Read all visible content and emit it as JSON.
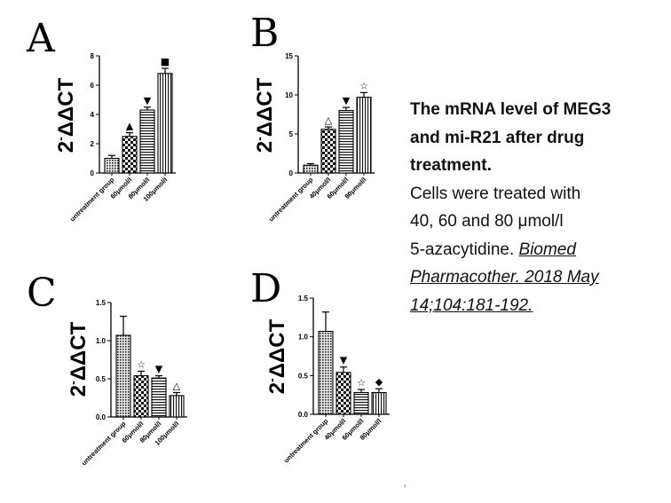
{
  "caption": {
    "title_lines": [
      "The mRNA level of MEG3",
      "and mi-R21 after drug",
      "treatment."
    ],
    "body_lines": [
      "Cells were treated with",
      "40, 60 and 80 μmol/l",
      "5-azacytidine. "
    ],
    "reference_lines": [
      "Biomed ",
      "Pharmacother. 2018 May ",
      "14;104:181-192."
    ]
  },
  "stray_mark": "‹",
  "chart_data": [
    {
      "panel": "A",
      "type": "bar",
      "ylabel": "2-ΔΔCT",
      "ylim": [
        0,
        8
      ],
      "yticks": [
        "0",
        "2",
        "4",
        "6",
        "8"
      ],
      "categories": [
        "untreatment group",
        "60μmol/l",
        "80μmol/l",
        "100μmol/l"
      ],
      "values": [
        1.0,
        2.5,
        4.3,
        6.8
      ],
      "errors": [
        0.2,
        0.25,
        0.2,
        0.35
      ],
      "markers": [
        "",
        "▲",
        "▼",
        "■"
      ],
      "patterns": [
        "dots",
        "checker",
        "hlines",
        "vlines"
      ]
    },
    {
      "panel": "B",
      "type": "bar",
      "ylabel": "2-ΔΔCT",
      "ylim": [
        0,
        15
      ],
      "yticks": [
        "0",
        "5",
        "10",
        "15"
      ],
      "categories": [
        "untreatment group",
        "40μmol/l",
        "60μmol/l",
        "80μmol/l"
      ],
      "values": [
        1.0,
        5.6,
        8.0,
        9.7
      ],
      "errors": [
        0.2,
        0.3,
        0.4,
        0.6
      ],
      "markers": [
        "",
        "△",
        "▼",
        "☆"
      ],
      "patterns": [
        "dots",
        "checker",
        "hlines",
        "vlines"
      ]
    },
    {
      "panel": "C",
      "type": "bar",
      "ylabel": "2-ΔΔCT",
      "ylim": [
        0,
        1.5
      ],
      "yticks": [
        "0.0",
        "0.5",
        "1.0",
        "1.5"
      ],
      "categories": [
        "untreatment group",
        "60μmol/l",
        "80μmol/l",
        "100μmol/l"
      ],
      "values": [
        1.07,
        0.54,
        0.51,
        0.28
      ],
      "errors": [
        0.25,
        0.06,
        0.03,
        0.04
      ],
      "markers": [
        "",
        "☆",
        "▼",
        "△"
      ],
      "patterns": [
        "dots",
        "checker",
        "hlines",
        "vlines"
      ]
    },
    {
      "panel": "D",
      "type": "bar",
      "ylabel": "2-ΔΔCT",
      "ylim": [
        0,
        1.5
      ],
      "yticks": [
        "0.0",
        "0.5",
        "1.0",
        "1.5"
      ],
      "categories": [
        "untreatment group",
        "40μmol/l",
        "60μmol/l",
        "80μmol/l"
      ],
      "values": [
        1.07,
        0.54,
        0.28,
        0.28
      ],
      "errors": [
        0.25,
        0.07,
        0.04,
        0.05
      ],
      "markers": [
        "",
        "▼",
        "☆",
        "◆"
      ],
      "patterns": [
        "dots",
        "checker",
        "hlines",
        "vlines"
      ]
    }
  ]
}
